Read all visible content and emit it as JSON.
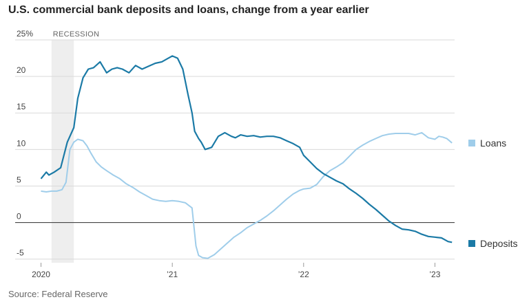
{
  "title": "U.S. commercial bank deposits and loans, change from a year earlier",
  "source": "Source: Federal Reserve",
  "colors": {
    "deposits": "#1b7aa6",
    "loans": "#9fcdea",
    "recession": "#eeeeee",
    "grid": "#d9d9d9",
    "zero": "#444444"
  },
  "chart_data": {
    "type": "line",
    "title": "U.S. commercial bank deposits and loans, change from a year earlier",
    "xlim": [
      2019.95,
      2023.15
    ],
    "ylim": [
      -5.5,
      25
    ],
    "y_ticks": [
      25,
      20,
      15,
      10,
      5,
      0,
      -5
    ],
    "y_tick_labels": [
      "25%",
      "20",
      "15",
      "10",
      "5",
      "0",
      "-5"
    ],
    "x_ticks": [
      2020,
      2021,
      2022,
      2023
    ],
    "x_tick_labels": [
      "2020",
      "’21",
      "’22",
      "’23"
    ],
    "recession": {
      "label": "RECESSION",
      "start": 2020.08,
      "end": 2020.25
    },
    "legend_placement": "right, beside line ends",
    "series": [
      {
        "name": "Deposits",
        "x": [
          2020.0,
          2020.04,
          2020.06,
          2020.1,
          2020.15,
          2020.2,
          2020.25,
          2020.28,
          2020.32,
          2020.36,
          2020.4,
          2020.45,
          2020.5,
          2020.54,
          2020.58,
          2020.62,
          2020.67,
          2020.72,
          2020.77,
          2020.82,
          2020.87,
          2020.92,
          2020.97,
          2021.0,
          2021.04,
          2021.08,
          2021.12,
          2021.15,
          2021.17,
          2021.2,
          2021.22,
          2021.25,
          2021.3,
          2021.35,
          2021.4,
          2021.45,
          2021.48,
          2021.52,
          2021.57,
          2021.62,
          2021.67,
          2021.72,
          2021.77,
          2021.82,
          2021.87,
          2021.92,
          2021.97,
          2022.0,
          2022.05,
          2022.1,
          2022.15,
          2022.2,
          2022.25,
          2022.3,
          2022.35,
          2022.4,
          2022.45,
          2022.5,
          2022.55,
          2022.6,
          2022.65,
          2022.7,
          2022.75,
          2022.8,
          2022.85,
          2022.9,
          2022.95,
          2023.0,
          2023.05,
          2023.1,
          2023.13
        ],
        "values": [
          6.0,
          6.9,
          6.5,
          6.9,
          7.5,
          11.0,
          13.0,
          17.0,
          19.8,
          21.0,
          21.2,
          22.0,
          20.5,
          21.0,
          21.2,
          21.0,
          20.5,
          21.5,
          21.0,
          21.4,
          21.8,
          22.0,
          22.5,
          22.8,
          22.5,
          21.0,
          17.5,
          15.0,
          12.5,
          11.5,
          11.0,
          10.0,
          10.3,
          11.8,
          12.3,
          11.8,
          11.6,
          12.0,
          11.8,
          11.9,
          11.7,
          11.8,
          11.8,
          11.6,
          11.2,
          10.8,
          10.3,
          9.2,
          8.3,
          7.4,
          6.7,
          6.2,
          5.7,
          5.3,
          4.6,
          4.0,
          3.3,
          2.5,
          1.8,
          1.0,
          0.2,
          -0.4,
          -0.9,
          -1.0,
          -1.2,
          -1.6,
          -1.9,
          -2.0,
          -2.1,
          -2.6,
          -2.7
        ]
      },
      {
        "name": "Loans",
        "x": [
          2020.0,
          2020.04,
          2020.08,
          2020.12,
          2020.16,
          2020.19,
          2020.22,
          2020.25,
          2020.28,
          2020.32,
          2020.35,
          2020.38,
          2020.42,
          2020.46,
          2020.5,
          2020.55,
          2020.6,
          2020.65,
          2020.7,
          2020.75,
          2020.8,
          2020.85,
          2020.9,
          2020.95,
          2021.0,
          2021.05,
          2021.1,
          2021.15,
          2021.18,
          2021.2,
          2021.23,
          2021.27,
          2021.32,
          2021.37,
          2021.42,
          2021.47,
          2021.52,
          2021.57,
          2021.62,
          2021.67,
          2021.72,
          2021.77,
          2021.82,
          2021.87,
          2021.92,
          2021.97,
          2022.0,
          2022.05,
          2022.1,
          2022.15,
          2022.2,
          2022.25,
          2022.3,
          2022.35,
          2022.4,
          2022.45,
          2022.5,
          2022.55,
          2022.6,
          2022.65,
          2022.7,
          2022.75,
          2022.8,
          2022.85,
          2022.9,
          2022.95,
          2023.0,
          2023.03,
          2023.06,
          2023.09,
          2023.13
        ],
        "values": [
          4.3,
          4.2,
          4.3,
          4.3,
          4.5,
          5.5,
          10.0,
          11.0,
          11.4,
          11.2,
          10.5,
          9.5,
          8.3,
          7.6,
          7.1,
          6.5,
          6.0,
          5.3,
          4.8,
          4.2,
          3.7,
          3.2,
          3.0,
          2.9,
          3.0,
          2.9,
          2.7,
          2.0,
          -3.2,
          -4.5,
          -4.8,
          -4.9,
          -4.4,
          -3.6,
          -2.8,
          -2.0,
          -1.4,
          -0.7,
          -0.2,
          0.3,
          0.9,
          1.6,
          2.4,
          3.2,
          3.9,
          4.4,
          4.6,
          4.7,
          5.2,
          6.3,
          7.1,
          7.6,
          8.2,
          9.1,
          10.0,
          10.6,
          11.1,
          11.5,
          11.9,
          12.1,
          12.2,
          12.2,
          12.2,
          12.0,
          12.3,
          11.6,
          11.4,
          11.8,
          11.7,
          11.5,
          10.9
        ]
      }
    ]
  }
}
